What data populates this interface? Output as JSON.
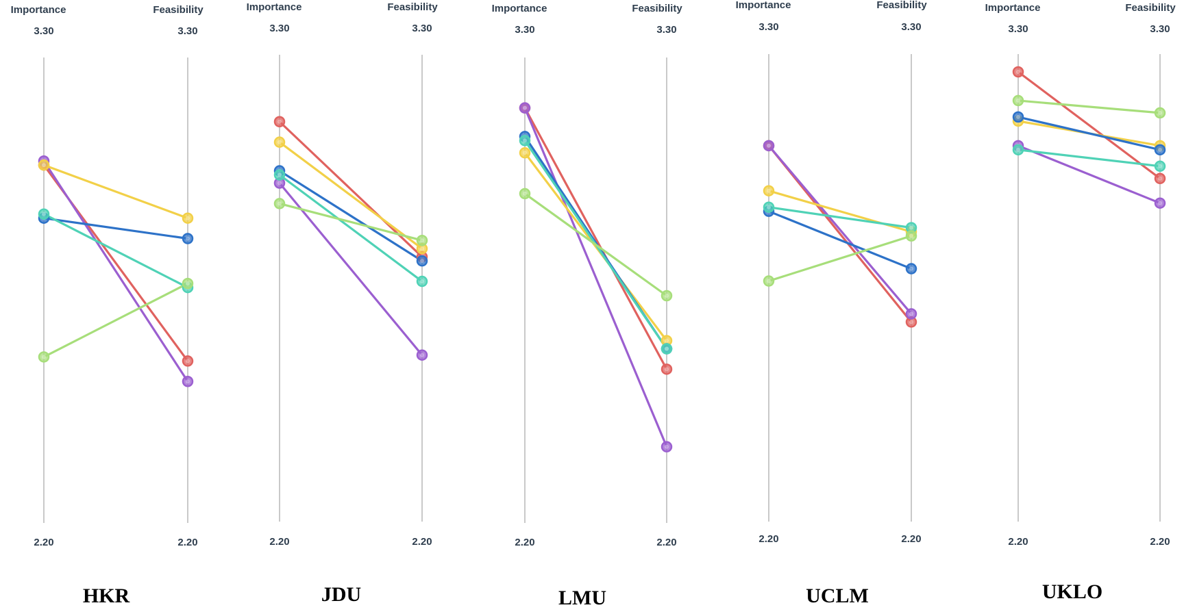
{
  "axis_labels": {
    "left": "Importance",
    "right": "Feasibility"
  },
  "colors": {
    "red": "#e0625f",
    "purple": "#9b5fd0",
    "yellow": "#f2d048",
    "blue": "#2d72c8",
    "teal": "#4fd2b6",
    "lightgreen": "#a7de7a"
  },
  "chart_data": [
    {
      "type": "line",
      "title": "HKR",
      "x": [
        "Importance",
        "Feasibility"
      ],
      "ylim": [
        2.2,
        3.3
      ],
      "tick_labels": {
        "top": "3.30",
        "bottom": "2.20"
      },
      "series": [
        {
          "color": "red",
          "values": [
            3.07,
            2.59
          ]
        },
        {
          "color": "purple",
          "values": [
            3.08,
            2.54
          ]
        },
        {
          "color": "yellow",
          "values": [
            3.07,
            2.94
          ]
        },
        {
          "color": "blue",
          "values": [
            2.94,
            2.89
          ]
        },
        {
          "color": "teal",
          "values": [
            2.95,
            2.77
          ]
        },
        {
          "color": "lightgreen",
          "values": [
            2.6,
            2.78
          ]
        }
      ]
    },
    {
      "type": "line",
      "title": "JDU",
      "x": [
        "Importance",
        "Feasibility"
      ],
      "ylim": [
        2.2,
        3.3
      ],
      "tick_labels": {
        "top": "3.30",
        "bottom": "2.20"
      },
      "series": [
        {
          "color": "red",
          "values": [
            3.17,
            2.84
          ]
        },
        {
          "color": "purple",
          "values": [
            3.02,
            2.6
          ]
        },
        {
          "color": "yellow",
          "values": [
            3.12,
            2.86
          ]
        },
        {
          "color": "blue",
          "values": [
            3.05,
            2.83
          ]
        },
        {
          "color": "teal",
          "values": [
            3.04,
            2.78
          ]
        },
        {
          "color": "lightgreen",
          "values": [
            2.97,
            2.88
          ]
        }
      ]
    },
    {
      "type": "line",
      "title": "LMU",
      "x": [
        "Importance",
        "Feasibility"
      ],
      "ylim": [
        2.2,
        3.3
      ],
      "tick_labels": {
        "top": "3.30",
        "bottom": "2.20"
      },
      "series": [
        {
          "color": "red",
          "values": [
            3.21,
            2.57
          ]
        },
        {
          "color": "purple",
          "values": [
            3.21,
            2.38
          ]
        },
        {
          "color": "yellow",
          "values": [
            3.1,
            2.64
          ]
        },
        {
          "color": "blue",
          "values": [
            3.14,
            2.62
          ]
        },
        {
          "color": "teal",
          "values": [
            3.13,
            2.62
          ]
        },
        {
          "color": "lightgreen",
          "values": [
            3.0,
            2.75
          ]
        }
      ]
    },
    {
      "type": "line",
      "title": "UCLM",
      "x": [
        "Importance",
        "Feasibility"
      ],
      "ylim": [
        2.2,
        3.3
      ],
      "tick_labels": {
        "top": "3.30",
        "bottom": "2.20"
      },
      "series": [
        {
          "color": "red",
          "values": [
            3.11,
            2.68
          ]
        },
        {
          "color": "purple",
          "values": [
            3.11,
            2.7
          ]
        },
        {
          "color": "yellow",
          "values": [
            3.0,
            2.9
          ]
        },
        {
          "color": "blue",
          "values": [
            2.95,
            2.81
          ]
        },
        {
          "color": "teal",
          "values": [
            2.96,
            2.91
          ]
        },
        {
          "color": "lightgreen",
          "values": [
            2.78,
            2.89
          ]
        }
      ]
    },
    {
      "type": "line",
      "title": "UKLO",
      "x": [
        "Importance",
        "Feasibility"
      ],
      "ylim": [
        2.2,
        3.3
      ],
      "tick_labels": {
        "top": "3.30",
        "bottom": "2.20"
      },
      "series": [
        {
          "color": "red",
          "values": [
            3.29,
            3.03
          ]
        },
        {
          "color": "purple",
          "values": [
            3.11,
            2.97
          ]
        },
        {
          "color": "yellow",
          "values": [
            3.17,
            3.11
          ]
        },
        {
          "color": "blue",
          "values": [
            3.18,
            3.1
          ]
        },
        {
          "color": "teal",
          "values": [
            3.1,
            3.06
          ]
        },
        {
          "color": "lightgreen",
          "values": [
            3.22,
            3.19
          ]
        }
      ]
    }
  ]
}
